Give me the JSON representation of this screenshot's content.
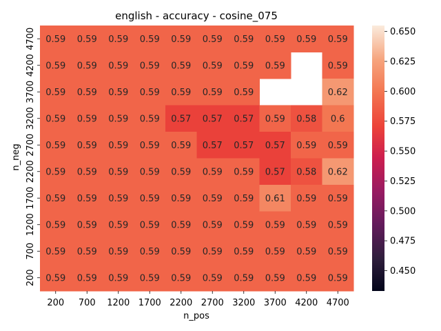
{
  "chart_data": {
    "type": "heatmap",
    "title": "english - accuracy - cosine_075",
    "xlabel": "n_pos",
    "ylabel": "n_neg",
    "x": [
      "200",
      "700",
      "1200",
      "1700",
      "2200",
      "2700",
      "3200",
      "3700",
      "4200",
      "4700"
    ],
    "y": [
      "4700",
      "4200",
      "3700",
      "3200",
      "2700",
      "2200",
      "1700",
      "1200",
      "700",
      "200"
    ],
    "values": [
      [
        0.59,
        0.59,
        0.59,
        0.59,
        0.59,
        0.59,
        0.59,
        0.59,
        0.59,
        0.59
      ],
      [
        0.59,
        0.59,
        0.59,
        0.59,
        0.59,
        0.59,
        0.59,
        0.59,
        null,
        0.59
      ],
      [
        0.59,
        0.59,
        0.59,
        0.59,
        0.59,
        0.59,
        0.59,
        null,
        null,
        0.62
      ],
      [
        0.59,
        0.59,
        0.59,
        0.59,
        0.57,
        0.57,
        0.57,
        0.59,
        0.58,
        0.6
      ],
      [
        0.59,
        0.59,
        0.59,
        0.59,
        0.59,
        0.57,
        0.57,
        0.57,
        0.59,
        0.59
      ],
      [
        0.59,
        0.59,
        0.59,
        0.59,
        0.59,
        0.59,
        0.59,
        0.57,
        0.58,
        0.62
      ],
      [
        0.59,
        0.59,
        0.59,
        0.59,
        0.59,
        0.59,
        0.59,
        0.61,
        0.59,
        0.59
      ],
      [
        0.59,
        0.59,
        0.59,
        0.59,
        0.59,
        0.59,
        0.59,
        0.59,
        0.59,
        0.59
      ],
      [
        0.59,
        0.59,
        0.59,
        0.59,
        0.59,
        0.59,
        0.59,
        0.59,
        0.59,
        0.59
      ],
      [
        0.59,
        0.59,
        0.59,
        0.59,
        0.59,
        0.59,
        0.59,
        0.59,
        0.59,
        0.59
      ]
    ],
    "colorbar": {
      "range": [
        0.433,
        0.655
      ],
      "ticks": [
        "0.450",
        "0.475",
        "0.500",
        "0.525",
        "0.550",
        "0.575",
        "0.600",
        "0.625",
        "0.650"
      ],
      "colormap": "rocket"
    },
    "legend": "colorbar-right",
    "grid": false
  }
}
